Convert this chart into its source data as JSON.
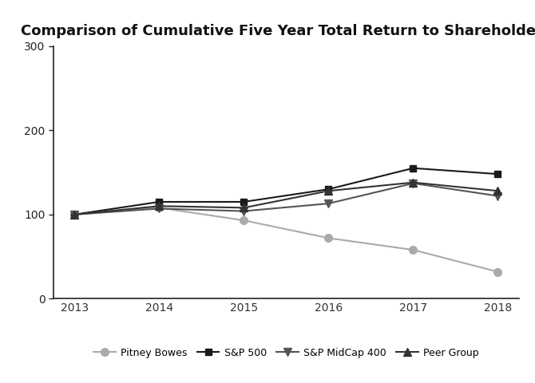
{
  "title": "Comparison of Cumulative Five Year Total Return to Shareholders",
  "years": [
    2013,
    2014,
    2015,
    2016,
    2017,
    2018
  ],
  "series": {
    "Pitney Bowes": {
      "values": [
        100,
        108,
        93,
        72,
        58,
        32
      ],
      "color": "#aaaaaa",
      "marker": "o",
      "markersize": 7,
      "linewidth": 1.5,
      "linestyle": "-"
    },
    "S&P 500": {
      "values": [
        100,
        115,
        115,
        130,
        155,
        148
      ],
      "color": "#1a1a1a",
      "marker": "s",
      "markersize": 6,
      "linewidth": 1.5,
      "linestyle": "-"
    },
    "S&P MidCap 400": {
      "values": [
        100,
        107,
        104,
        113,
        137,
        122
      ],
      "color": "#555555",
      "marker": "v",
      "markersize": 7,
      "linewidth": 1.5,
      "linestyle": "-"
    },
    "Peer Group": {
      "values": [
        100,
        110,
        108,
        128,
        138,
        128
      ],
      "color": "#333333",
      "marker": "^",
      "markersize": 7,
      "linewidth": 1.5,
      "linestyle": "-"
    }
  },
  "ylim": [
    0,
    300
  ],
  "yticks": [
    0,
    100,
    200,
    300
  ],
  "background_color": "#ffffff",
  "legend_order": [
    "Pitney Bowes",
    "S&P 500",
    "S&P MidCap 400",
    "Peer Group"
  ],
  "title_fontsize": 13,
  "tick_fontsize": 10
}
